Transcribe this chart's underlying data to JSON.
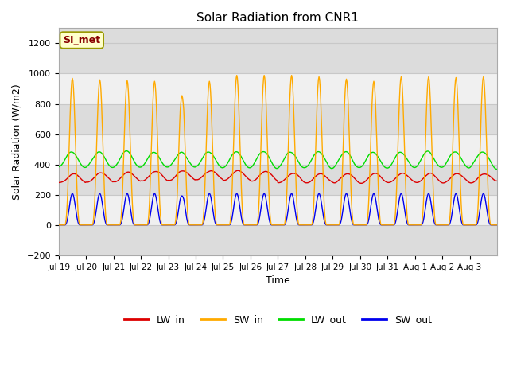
{
  "title": "Solar Radiation from CNR1",
  "xlabel": "Time",
  "ylabel": "Solar Radiation (W/m2)",
  "ylim": [
    -200,
    1300
  ],
  "yticks": [
    -200,
    0,
    200,
    400,
    600,
    800,
    1000,
    1200
  ],
  "x_tick_labels": [
    "Jul 19",
    "Jul 20",
    "Jul 21",
    "Jul 22",
    "Jul 23",
    "Jul 24",
    "Jul 25",
    "Jul 26",
    "Jul 27",
    "Jul 28",
    "Jul 29",
    "Jul 30",
    "Jul 31",
    "Aug 1",
    "Aug 2",
    "Aug 3"
  ],
  "annotation_text": "SI_met",
  "annotation_bg": "#ffffcc",
  "annotation_border": "#999900",
  "annotation_text_color": "#880000",
  "background_color": "#ffffff",
  "plot_bg_light": "#f0f0f0",
  "plot_bg_dark": "#dcdcdc",
  "grid_color": "#d0d0d0",
  "line_colors": {
    "LW_in": "#dd0000",
    "SW_in": "#ffaa00",
    "LW_out": "#00dd00",
    "SW_out": "#0000ee"
  },
  "sw_in_peaks": [
    980,
    970,
    965,
    960,
    930,
    960,
    1000,
    1000,
    1000,
    990,
    975,
    960,
    990,
    990,
    985,
    990
  ],
  "sw_out_peak": 210,
  "lw_in_base": 310,
  "lw_in_amplitude": 35,
  "lw_out_base": 430,
  "lw_out_amplitude": 60
}
